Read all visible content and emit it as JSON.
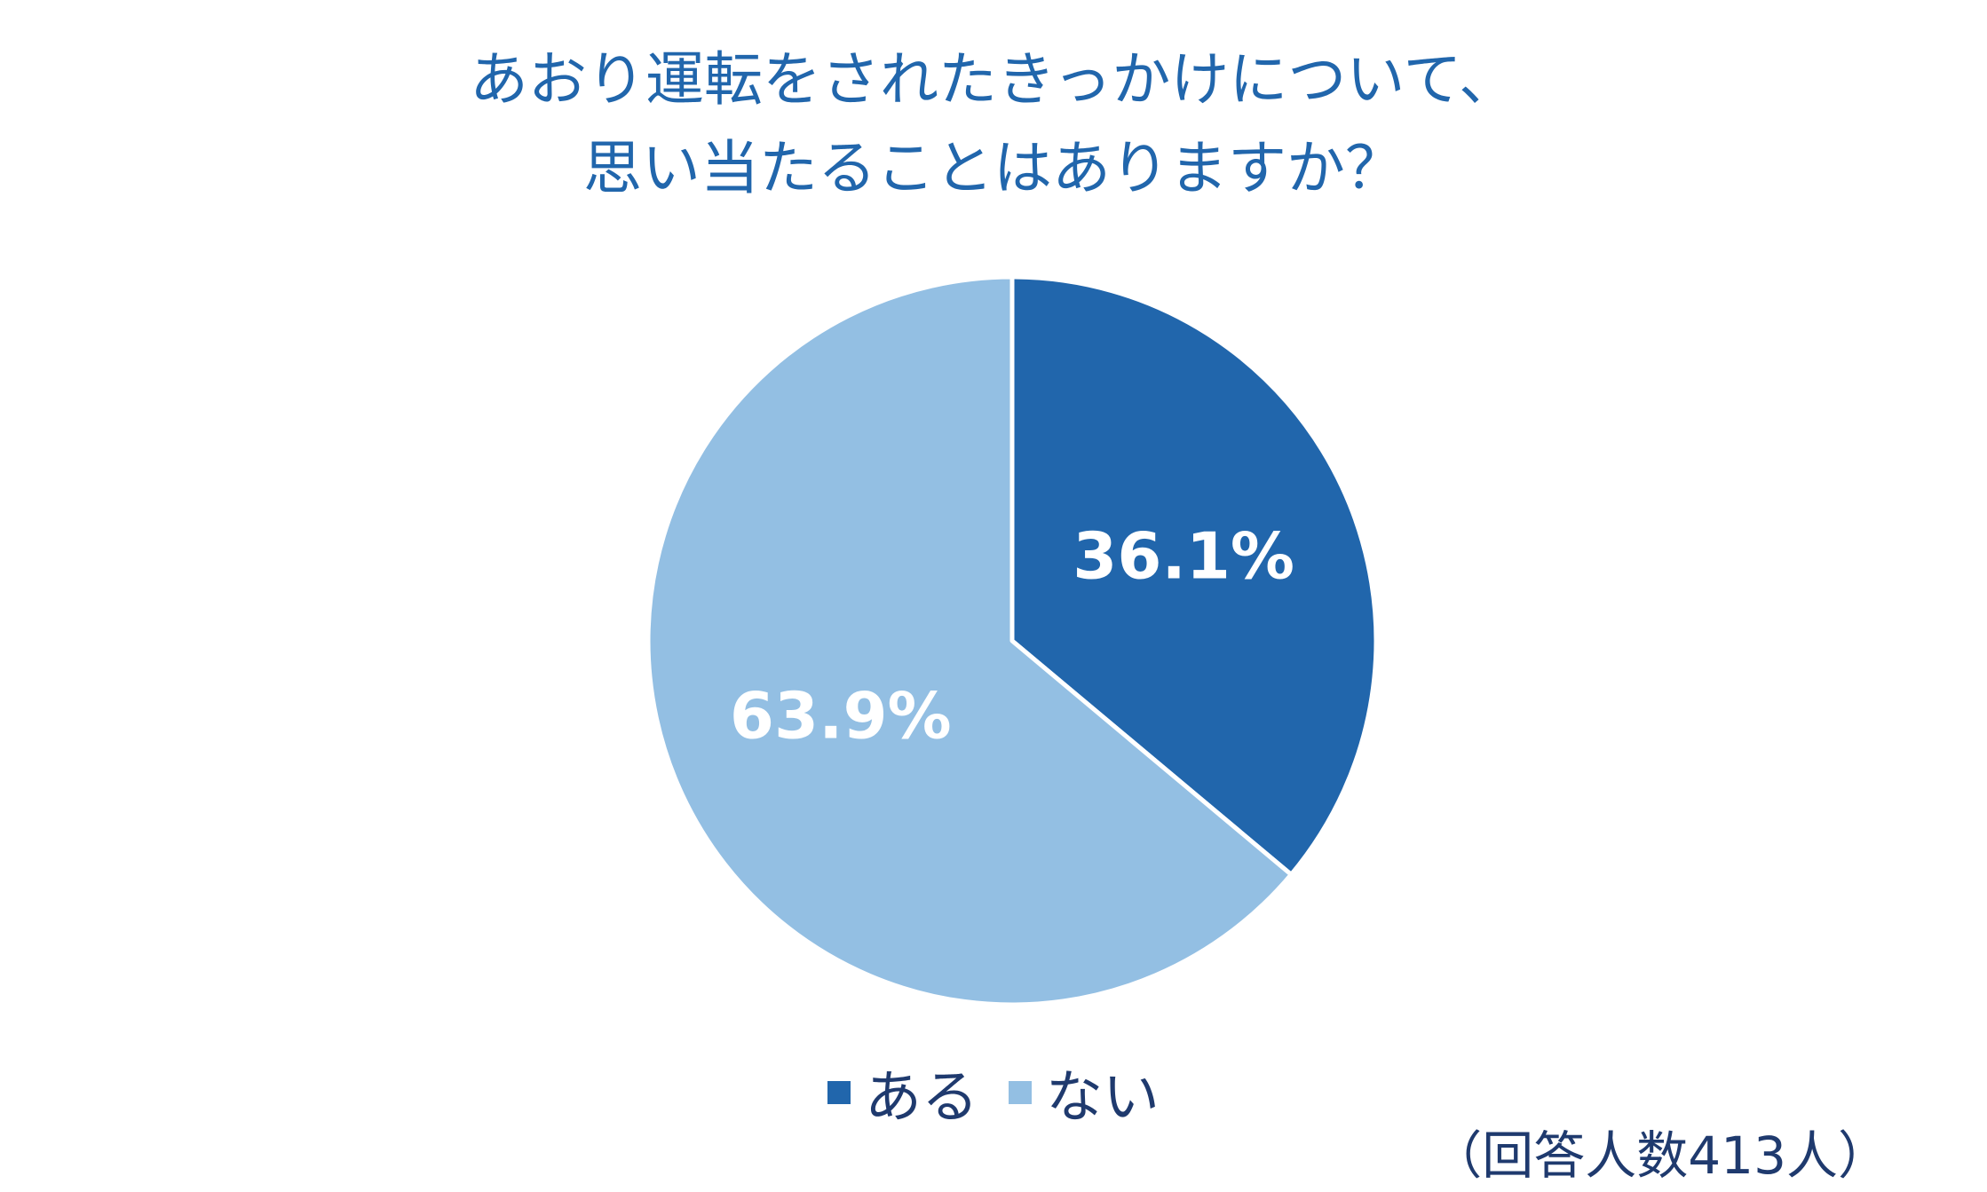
{
  "chart_data": {
    "type": "pie",
    "title": [
      "あおり運転をされたきっかけについて、",
      "思い当たることはありますか？"
    ],
    "slices": [
      {
        "label": "ある",
        "value": 36.1,
        "display": "36.1%",
        "color": "#2166ac"
      },
      {
        "label": "ない",
        "value": 63.9,
        "display": "63.9%",
        "color": "#93bfe3"
      }
    ],
    "legend_position": "bottom-center",
    "note": "（回答人数413人）"
  }
}
